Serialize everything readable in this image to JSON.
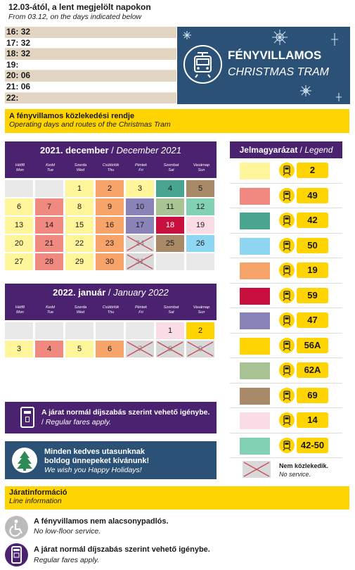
{
  "header": {
    "title_hu": "12.03-ától, a lent megjelölt napokon",
    "title_en": "From 03.12, on the days indicated below"
  },
  "times": [
    {
      "hour": "16:",
      "minutes": "32"
    },
    {
      "hour": "17:",
      "minutes": "32"
    },
    {
      "hour": "18:",
      "minutes": "32"
    },
    {
      "hour": "19:",
      "minutes": ""
    },
    {
      "hour": "20:",
      "minutes": "06"
    },
    {
      "hour": "21:",
      "minutes": "06"
    },
    {
      "hour": "22:",
      "minutes": ""
    }
  ],
  "banner": {
    "title_hu": "FÉNYVILLAMOS",
    "title_en": "CHRISTMAS TRAM",
    "icon": "tram-icon"
  },
  "section_schedule": {
    "title_hu": "A fényvillamos közlekedési rendje",
    "title_en": "Operating days and routes of the Christmas Tram"
  },
  "weekdays": [
    {
      "hu": "Hétfő",
      "en": "Mon"
    },
    {
      "hu": "Kedd",
      "en": "Tue"
    },
    {
      "hu": "Szerda",
      "en": "Wed"
    },
    {
      "hu": "Csütörtök",
      "en": "Thu"
    },
    {
      "hu": "Péntek",
      "en": "Fri"
    },
    {
      "hu": "Szombat",
      "en": "Sat"
    },
    {
      "hu": "Vasárnap",
      "en": "Sun"
    }
  ],
  "calendars": [
    {
      "title_hu": "2021. december",
      "title_en": "December 2021",
      "cells": [
        {
          "day": "",
          "line": null
        },
        {
          "day": "",
          "line": null
        },
        {
          "day": "1",
          "line": "2"
        },
        {
          "day": "2",
          "line": "19"
        },
        {
          "day": "3",
          "line": "2"
        },
        {
          "day": "4",
          "line": "42"
        },
        {
          "day": "5",
          "line": "69"
        },
        {
          "day": "6",
          "line": "2"
        },
        {
          "day": "7",
          "line": "49"
        },
        {
          "day": "8",
          "line": "2"
        },
        {
          "day": "9",
          "line": "19"
        },
        {
          "day": "10",
          "line": "47"
        },
        {
          "day": "11",
          "line": "62A"
        },
        {
          "day": "12",
          "line": "42-50"
        },
        {
          "day": "13",
          "line": "2"
        },
        {
          "day": "14",
          "line": "49"
        },
        {
          "day": "15",
          "line": "2"
        },
        {
          "day": "16",
          "line": "19"
        },
        {
          "day": "17",
          "line": "47"
        },
        {
          "day": "18",
          "line": "59"
        },
        {
          "day": "19",
          "line": "14"
        },
        {
          "day": "20",
          "line": "2"
        },
        {
          "day": "21",
          "line": "49"
        },
        {
          "day": "22",
          "line": "2"
        },
        {
          "day": "23",
          "line": "19"
        },
        {
          "day": "24",
          "line": "none"
        },
        {
          "day": "25",
          "line": "69"
        },
        {
          "day": "26",
          "line": "50"
        },
        {
          "day": "27",
          "line": "2"
        },
        {
          "day": "28",
          "line": "49"
        },
        {
          "day": "29",
          "line": "2"
        },
        {
          "day": "30",
          "line": "19"
        },
        {
          "day": "31",
          "line": "none"
        },
        {
          "day": "",
          "line": null
        },
        {
          "day": "",
          "line": null
        }
      ]
    },
    {
      "title_hu": "2022. január",
      "title_en": "January 2022",
      "cells": [
        {
          "day": "",
          "line": null
        },
        {
          "day": "",
          "line": null
        },
        {
          "day": "",
          "line": null
        },
        {
          "day": "",
          "line": null
        },
        {
          "day": "",
          "line": null
        },
        {
          "day": "1",
          "line": "14"
        },
        {
          "day": "2",
          "line": "56A"
        },
        {
          "day": "3",
          "line": "2"
        },
        {
          "day": "4",
          "line": "49"
        },
        {
          "day": "5",
          "line": "2"
        },
        {
          "day": "6",
          "line": "19"
        },
        {
          "day": "7",
          "line": "none"
        },
        {
          "day": "8",
          "line": "none"
        },
        {
          "day": "9",
          "line": "none"
        }
      ]
    }
  ],
  "legend": {
    "title_hu": "Jelmagyarázat",
    "title_en": "Legend",
    "items": [
      {
        "line": "2",
        "color": "#fff59a"
      },
      {
        "line": "49",
        "color": "#f08a80"
      },
      {
        "line": "42",
        "color": "#4aa590"
      },
      {
        "line": "50",
        "color": "#8fd6f2"
      },
      {
        "line": "19",
        "color": "#f7a46b"
      },
      {
        "line": "59",
        "color": "#c8103e"
      },
      {
        "line": "47",
        "color": "#8a83b8"
      },
      {
        "line": "56A",
        "color": "#ffd400"
      },
      {
        "line": "62A",
        "color": "#a9c394"
      },
      {
        "line": "69",
        "color": "#a98a68"
      },
      {
        "line": "14",
        "color": "#fadce6"
      },
      {
        "line": "42-50",
        "color": "#82d1b5"
      }
    ],
    "no_service_hu": "Nem közlekedik.",
    "no_service_en": "No service."
  },
  "fare_notice": {
    "text_hu": "A járat normál díjszabás szerint vehető igénybe.",
    "text_en": "Regular fares apply.",
    "icon": "ticket-validator-icon"
  },
  "holiday_notice": {
    "text_hu_1": "Minden kedves utasunknak",
    "text_hu_2": "boldog ünnepeket kívánunk!",
    "text_en": "We wish you Happy Holidays!",
    "icon": "christmas-tree-icon"
  },
  "line_info": {
    "title_hu": "Járatinformáció",
    "title_en": "Line information",
    "items": [
      {
        "text_hu": "A fényvillamos nem alacsonypadlós.",
        "text_en": "No low-floor service.",
        "icon": "wheelchair-icon"
      },
      {
        "text_hu": "A járat normál díjszabás szerint vehető igénybe.",
        "text_en": "Regular fares apply.",
        "icon": "ticket-validator-icon"
      }
    ]
  },
  "colors": {
    "purple": "#4a2270",
    "navy": "#2b5177",
    "yellow": "#ffd400",
    "beige": "#e2d6c3"
  }
}
